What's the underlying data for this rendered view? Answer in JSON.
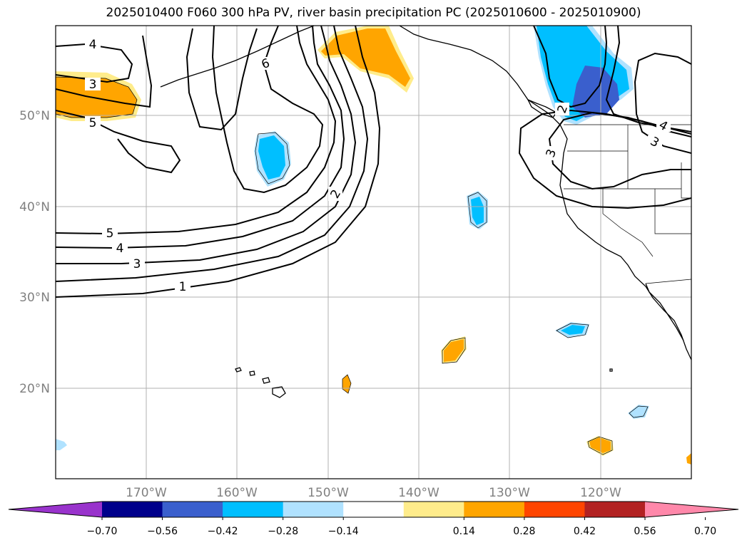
{
  "title": "2025010400 F060 300 hPa PV, river basin precipitation PC (2025010600 - 2025010900)",
  "lat_labels": [
    "20°N",
    "30°N",
    "40°N",
    "50°N"
  ],
  "lon_labels": [
    "170°W",
    "160°W",
    "150°W",
    "140°W",
    "130°W",
    "120°W"
  ],
  "pv_contour_labels": [
    "4",
    "3",
    "5",
    "6",
    "5",
    "4",
    "3",
    "1",
    "2",
    "2",
    "3",
    "3",
    "4"
  ],
  "colorbar": {
    "ticks": [
      "−0.70",
      "−0.56",
      "−0.42",
      "−0.28",
      "−0.14",
      "0.14",
      "0.28",
      "0.42",
      "0.56",
      "0.70"
    ],
    "colors": [
      "#9933cc",
      "#00008b",
      "#3a5fcd",
      "#00bfff",
      "#b0e2ff",
      "#ffffff",
      "#ffec8b",
      "#ffa500",
      "#ff4500",
      "#b22222",
      "#ff88aa"
    ]
  }
}
